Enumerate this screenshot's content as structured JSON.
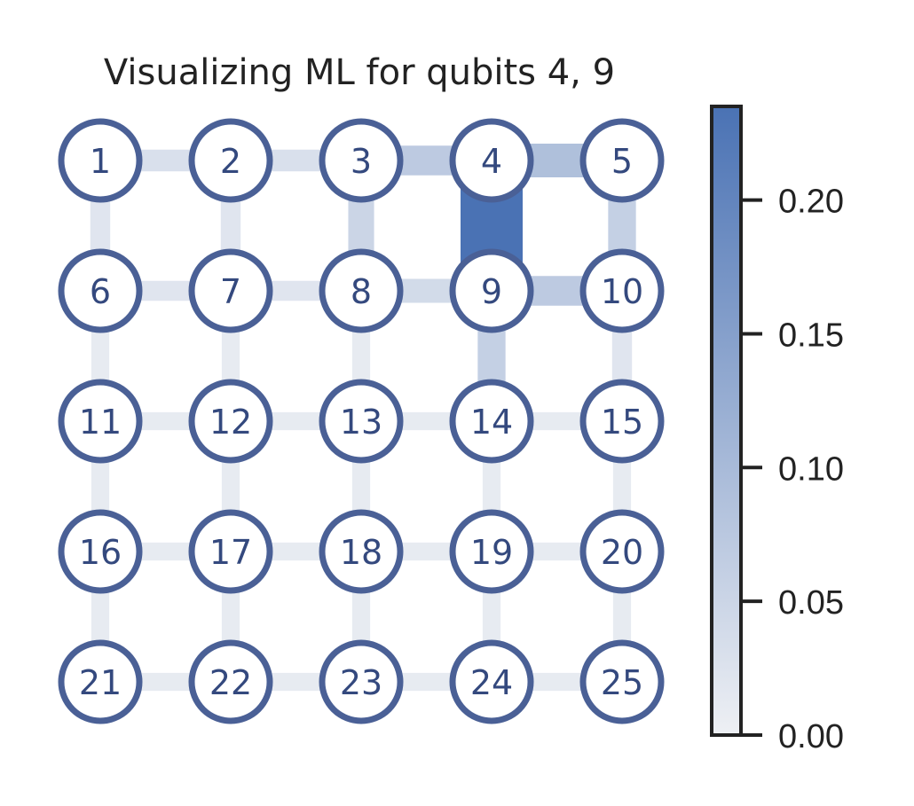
{
  "title": "Visualizing ML for qubits 4, 9",
  "grid": {
    "rows": 5,
    "cols": 5
  },
  "nodes": [
    "1",
    "2",
    "3",
    "4",
    "5",
    "6",
    "7",
    "8",
    "9",
    "10",
    "11",
    "12",
    "13",
    "14",
    "15",
    "16",
    "17",
    "18",
    "19",
    "20",
    "21",
    "22",
    "23",
    "24",
    "25"
  ],
  "edges": [
    {
      "a": 1,
      "b": 2,
      "value": 0.03
    },
    {
      "a": 2,
      "b": 3,
      "value": 0.03
    },
    {
      "a": 3,
      "b": 4,
      "value": 0.07
    },
    {
      "a": 4,
      "b": 5,
      "value": 0.09
    },
    {
      "a": 6,
      "b": 7,
      "value": 0.02
    },
    {
      "a": 7,
      "b": 8,
      "value": 0.02
    },
    {
      "a": 8,
      "b": 9,
      "value": 0.04
    },
    {
      "a": 9,
      "b": 10,
      "value": 0.07
    },
    {
      "a": 11,
      "b": 12,
      "value": 0.01
    },
    {
      "a": 12,
      "b": 13,
      "value": 0.01
    },
    {
      "a": 13,
      "b": 14,
      "value": 0.01
    },
    {
      "a": 14,
      "b": 15,
      "value": 0.01
    },
    {
      "a": 16,
      "b": 17,
      "value": 0.01
    },
    {
      "a": 17,
      "b": 18,
      "value": 0.01
    },
    {
      "a": 18,
      "b": 19,
      "value": 0.01
    },
    {
      "a": 19,
      "b": 20,
      "value": 0.01
    },
    {
      "a": 21,
      "b": 22,
      "value": 0.01
    },
    {
      "a": 22,
      "b": 23,
      "value": 0.01
    },
    {
      "a": 23,
      "b": 24,
      "value": 0.01
    },
    {
      "a": 24,
      "b": 25,
      "value": 0.01
    },
    {
      "a": 1,
      "b": 6,
      "value": 0.02
    },
    {
      "a": 2,
      "b": 7,
      "value": 0.02
    },
    {
      "a": 3,
      "b": 8,
      "value": 0.05
    },
    {
      "a": 4,
      "b": 9,
      "value": 0.235
    },
    {
      "a": 5,
      "b": 10,
      "value": 0.06
    },
    {
      "a": 6,
      "b": 11,
      "value": 0.01
    },
    {
      "a": 7,
      "b": 12,
      "value": 0.01
    },
    {
      "a": 8,
      "b": 13,
      "value": 0.01
    },
    {
      "a": 9,
      "b": 14,
      "value": 0.06
    },
    {
      "a": 10,
      "b": 15,
      "value": 0.02
    },
    {
      "a": 11,
      "b": 16,
      "value": 0.01
    },
    {
      "a": 12,
      "b": 17,
      "value": 0.01
    },
    {
      "a": 13,
      "b": 18,
      "value": 0.01
    },
    {
      "a": 14,
      "b": 19,
      "value": 0.01
    },
    {
      "a": 15,
      "b": 20,
      "value": 0.01
    },
    {
      "a": 16,
      "b": 21,
      "value": 0.01
    },
    {
      "a": 17,
      "b": 22,
      "value": 0.01
    },
    {
      "a": 18,
      "b": 23,
      "value": 0.01
    },
    {
      "a": 19,
      "b": 24,
      "value": 0.01
    },
    {
      "a": 20,
      "b": 25,
      "value": 0.01
    }
  ],
  "colorbar": {
    "min": 0.0,
    "max": 0.235,
    "ticks": [
      "0.00",
      "0.05",
      "0.10",
      "0.15",
      "0.20"
    ],
    "tick_values": [
      0.0,
      0.05,
      0.1,
      0.15,
      0.2
    ],
    "color_low": "#eef0f4",
    "color_high": "#4a72b4"
  },
  "colors": {
    "node_stroke": "#4a6096",
    "node_fill": "#ffffff",
    "label": "#34497e",
    "axis": "#222222"
  }
}
